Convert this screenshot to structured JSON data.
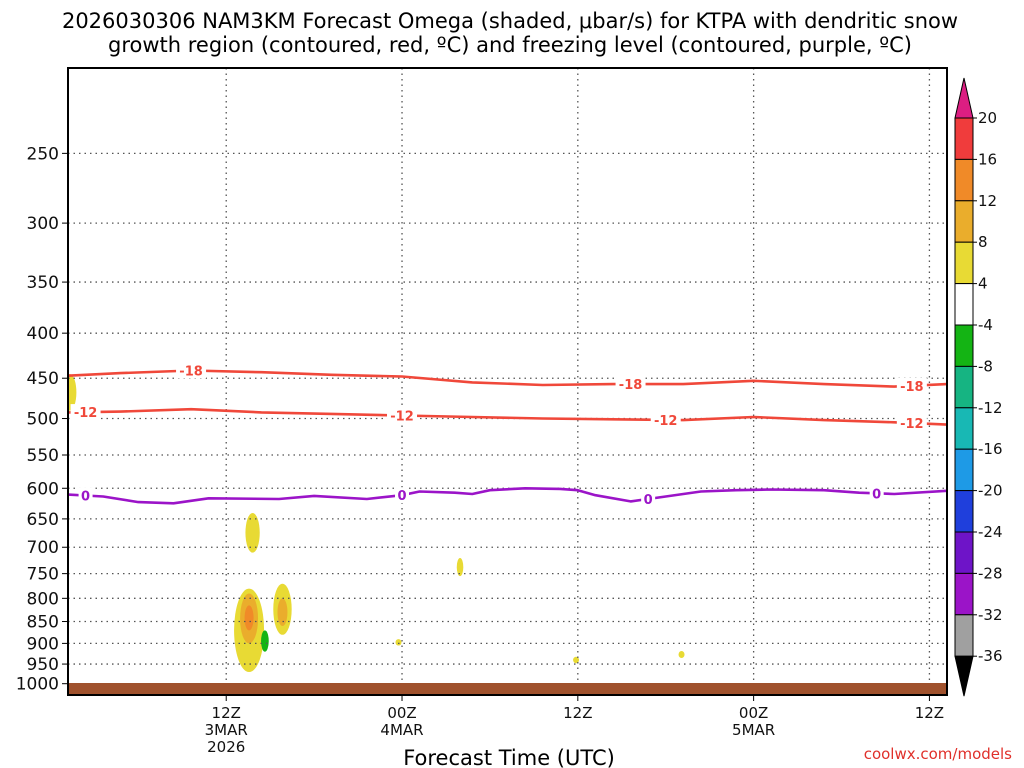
{
  "title": {
    "line1": "2026030306 NAM3KM Forecast Omega (shaded, μbar/s) for KTPA with dendritic snow",
    "line2": "growth region (contoured, red, ºC) and freezing level (contoured, purple, ºC)"
  },
  "credit": "coolwx.com/models",
  "colors": {
    "red_contour": "#f0483a",
    "purple_contour": "#9b14c8",
    "ground": "#a0522d"
  },
  "chart_data": {
    "type": "heatmap",
    "title": "2026030306 NAM3KM Forecast Omega (shaded, μbar/s) for KTPA with dendritic snow growth region (contoured, red, ºC) and freezing level (contoured, purple, ºC)",
    "xlabel": "Forecast Time (UTC)",
    "ylabel": "",
    "x_axis": {
      "range_hours": [
        3,
        53
      ],
      "ticks": [
        {
          "hour": 12,
          "lines": [
            "12Z",
            "3MAR",
            "2026"
          ]
        },
        {
          "hour": 22,
          "lines": [
            "00Z",
            "4MAR"
          ]
        },
        {
          "hour": 32,
          "lines": [
            "12Z"
          ]
        },
        {
          "hour": 42,
          "lines": [
            "00Z",
            "5MAR"
          ]
        },
        {
          "hour": 52,
          "lines": [
            "12Z"
          ]
        }
      ]
    },
    "y_axis": {
      "unit": "hPa",
      "ticks": [
        "250",
        "300",
        "350",
        "400",
        "450",
        "500",
        "550",
        "600",
        "650",
        "700",
        "750",
        "800",
        "850",
        "900",
        "950",
        "1000"
      ],
      "tick_values": [
        250,
        300,
        350,
        400,
        450,
        500,
        550,
        600,
        650,
        700,
        750,
        800,
        850,
        900,
        950,
        1000
      ],
      "range": [
        1030,
        200
      ],
      "scale": "log",
      "grid": true
    },
    "colorbar": {
      "labels": [
        "20",
        "16",
        "12",
        "8",
        "4",
        "-4",
        "-8",
        "-12",
        "-16",
        "-20",
        "-24",
        "-28",
        "-32",
        "-36"
      ],
      "colors": [
        "#f03c3c",
        "#f08a28",
        "#eaad2c",
        "#e8da34",
        "#ffffff",
        "#14b414",
        "#16b482",
        "#18b8b4",
        "#1e9ae6",
        "#1f3fdc",
        "#6e14c8",
        "#9b14c8",
        "#a0a0a0"
      ],
      "top_extend_color": "#dc1e82",
      "bottom_extend_color": "#000000"
    },
    "contours": [
      {
        "label": "-18",
        "color": "#f0483a",
        "points": [
          [
            3,
            447
          ],
          [
            6,
            444
          ],
          [
            10,
            441
          ],
          [
            14,
            443
          ],
          [
            18,
            446
          ],
          [
            22,
            448
          ],
          [
            26,
            455
          ],
          [
            30,
            458
          ],
          [
            34,
            457
          ],
          [
            38,
            457
          ],
          [
            42,
            453
          ],
          [
            46,
            457
          ],
          [
            50,
            460
          ],
          [
            53,
            457
          ]
        ],
        "label_hours": [
          10,
          35,
          51
        ]
      },
      {
        "label": "-12",
        "color": "#f0483a",
        "points": [
          [
            3,
            492
          ],
          [
            6,
            491
          ],
          [
            10,
            488
          ],
          [
            14,
            492
          ],
          [
            18,
            494
          ],
          [
            22,
            496
          ],
          [
            26,
            498
          ],
          [
            30,
            500
          ],
          [
            34,
            501
          ],
          [
            38,
            502
          ],
          [
            42,
            498
          ],
          [
            46,
            502
          ],
          [
            50,
            505
          ],
          [
            53,
            508
          ]
        ],
        "label_hours": [
          4,
          22,
          37,
          51
        ]
      },
      {
        "label": "0",
        "color": "#9b14c8",
        "points": [
          [
            3,
            610
          ],
          [
            5,
            613
          ],
          [
            7,
            622
          ],
          [
            9,
            624
          ],
          [
            11,
            616
          ],
          [
            15,
            617
          ],
          [
            17,
            612
          ],
          [
            20,
            617
          ],
          [
            22,
            611
          ],
          [
            23,
            605
          ],
          [
            25,
            607
          ],
          [
            26,
            609
          ],
          [
            27,
            603
          ],
          [
            29,
            600
          ],
          [
            31,
            601
          ],
          [
            32,
            603
          ],
          [
            33,
            611
          ],
          [
            35,
            621
          ],
          [
            37,
            613
          ],
          [
            39,
            605
          ],
          [
            41,
            603
          ],
          [
            43,
            602
          ],
          [
            46,
            603
          ],
          [
            48,
            607
          ],
          [
            50,
            609
          ],
          [
            53,
            604
          ]
        ],
        "label_hours": [
          4,
          22,
          36,
          49
        ]
      }
    ],
    "shaded_regions": [
      {
        "hour": 13.5,
        "p_top": 640,
        "p_bottom": 710,
        "omega": 4
      },
      {
        "hour": 13.3,
        "p_top": 780,
        "p_bottom": 970,
        "omega": 4
      },
      {
        "hour": 13.3,
        "p_top": 790,
        "p_bottom": 900,
        "omega": 8
      },
      {
        "hour": 13.3,
        "p_top": 815,
        "p_bottom": 870,
        "omega": 12
      },
      {
        "hour": 15.2,
        "p_top": 770,
        "p_bottom": 880,
        "omega": 4
      },
      {
        "hour": 15.2,
        "p_top": 800,
        "p_bottom": 860,
        "omega": 8
      },
      {
        "hour": 14.2,
        "p_top": 870,
        "p_bottom": 920,
        "omega": -4
      },
      {
        "hour": 21.8,
        "p_top": 890,
        "p_bottom": 905,
        "omega": 4
      },
      {
        "hour": 25.3,
        "p_top": 720,
        "p_bottom": 755,
        "omega": 4
      },
      {
        "hour": 31.9,
        "p_top": 932,
        "p_bottom": 948,
        "omega": 4
      },
      {
        "hour": 37.9,
        "p_top": 918,
        "p_bottom": 935,
        "omega": 4
      },
      {
        "hour": 3.1,
        "p_top": 445,
        "p_bottom": 490,
        "omega": 4
      }
    ]
  }
}
